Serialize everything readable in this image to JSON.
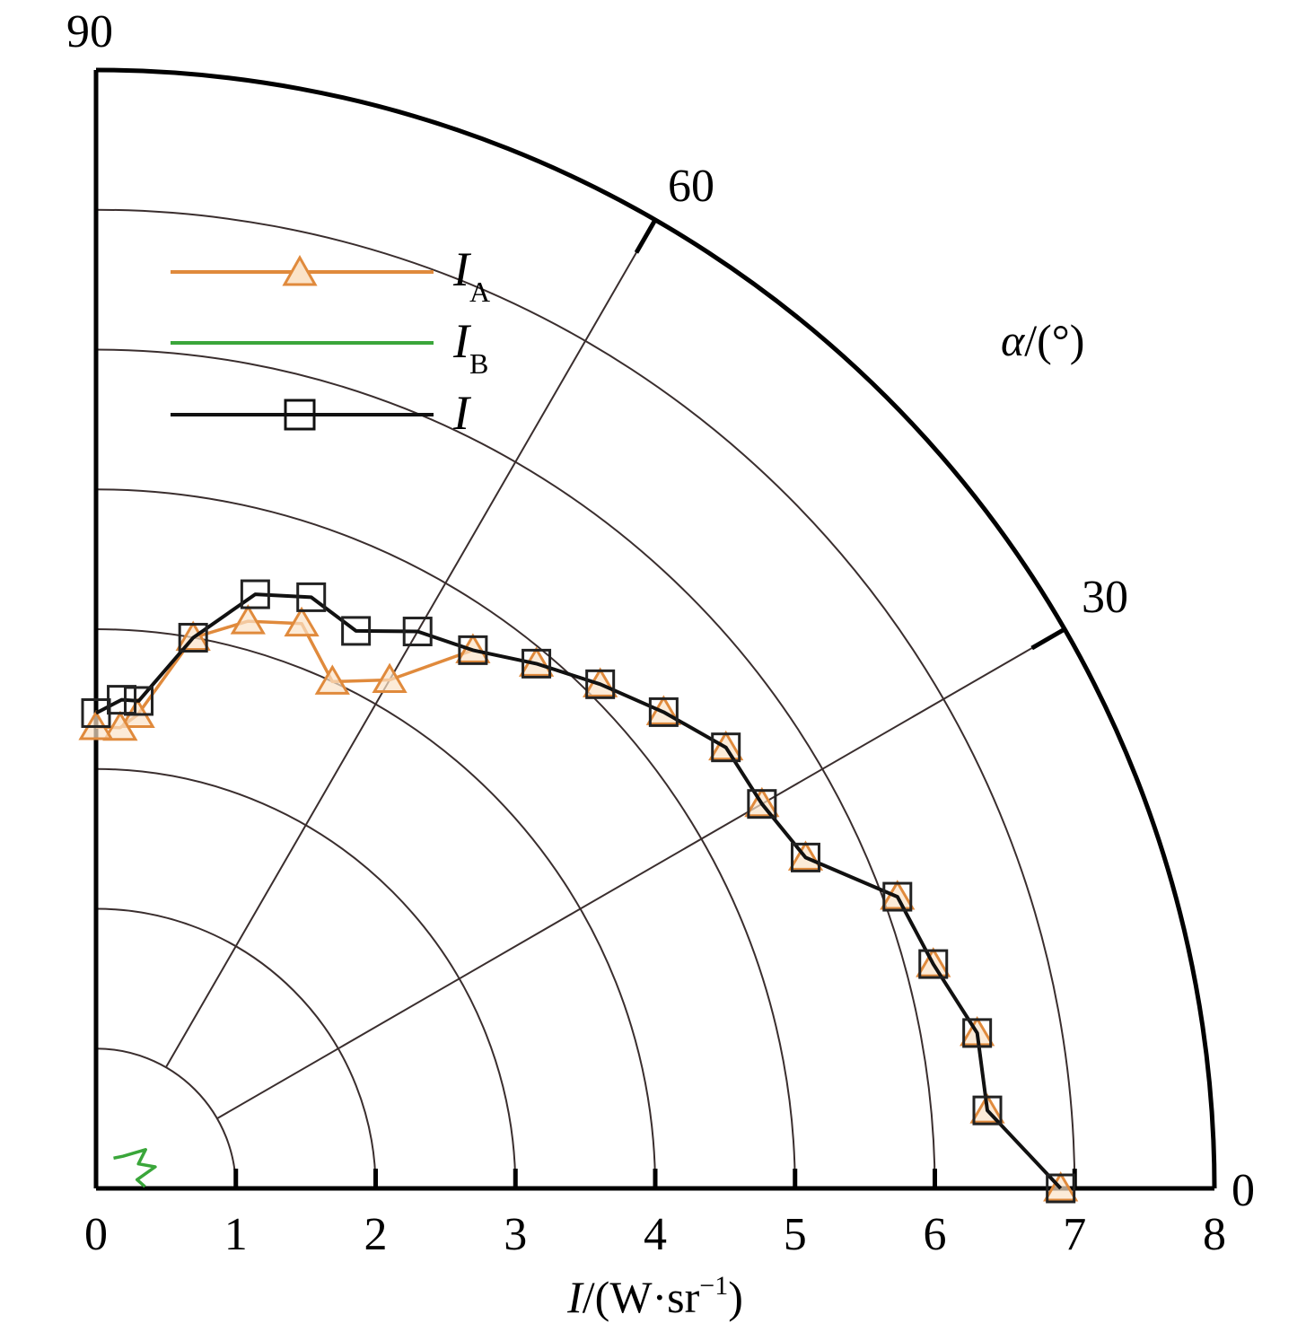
{
  "chart_data": {
    "type": "line",
    "coordinate_system": "polar-quadrant",
    "xlabel": "I/(W·sr⁻¹)",
    "xlabel_parts": {
      "var": "I",
      "rest": "/(W·sr",
      "sup": "−1",
      "close": ")"
    },
    "angle_label": "α/(°)",
    "angle_label_parts": {
      "var": "α",
      "rest": "/(°)"
    },
    "radial_range": [
      0,
      8
    ],
    "radial_ticks": [
      "0",
      "1",
      "2",
      "3",
      "4",
      "5",
      "6",
      "7",
      "8"
    ],
    "angle_range": [
      0,
      90
    ],
    "angle_ticks": [
      "0",
      "30",
      "60",
      "90"
    ],
    "grid": true,
    "legend_position": "top-left",
    "series": [
      {
        "name": "I_A",
        "label_main": "I",
        "label_sub": "A",
        "color": "#e08a3c",
        "marker": "triangle",
        "points": [
          {
            "angle": 0,
            "value": 6.9
          },
          {
            "angle": 5,
            "value": 6.4
          },
          {
            "angle": 10,
            "value": 6.4
          },
          {
            "angle": 15,
            "value": 6.2
          },
          {
            "angle": 20,
            "value": 6.1
          },
          {
            "angle": 25,
            "value": 5.6
          },
          {
            "angle": 30,
            "value": 5.5
          },
          {
            "angle": 35,
            "value": 5.5
          },
          {
            "angle": 40,
            "value": 5.3
          },
          {
            "angle": 45,
            "value": 5.1
          },
          {
            "angle": 50,
            "value": 4.9
          },
          {
            "angle": 55,
            "value": 4.7
          },
          {
            "angle": 60,
            "value": 4.2
          },
          {
            "angle": 65,
            "value": 4.0
          },
          {
            "angle": 70,
            "value": 4.3
          },
          {
            "angle": 75,
            "value": 4.2
          },
          {
            "angle": 80,
            "value": 4.0
          },
          {
            "angle": 85,
            "value": 3.4
          },
          {
            "angle": 87,
            "value": 3.3
          },
          {
            "angle": 90,
            "value": 3.3
          }
        ]
      },
      {
        "name": "I_B",
        "label_main": "I",
        "label_sub": "B",
        "color": "#3aa63a",
        "marker": "none",
        "points": [
          {
            "angle": 2,
            "value": 0.35
          },
          {
            "angle": 12,
            "value": 0.3
          },
          {
            "angle": 20,
            "value": 0.45
          },
          {
            "angle": 30,
            "value": 0.35
          },
          {
            "angle": 38,
            "value": 0.45
          },
          {
            "angle": 50,
            "value": 0.3
          },
          {
            "angle": 60,
            "value": 0.25
          }
        ]
      },
      {
        "name": "I",
        "label_main": "I",
        "label_sub": "",
        "color": "#111111",
        "marker": "square",
        "points": [
          {
            "angle": 0,
            "value": 6.9
          },
          {
            "angle": 5,
            "value": 6.4
          },
          {
            "angle": 10,
            "value": 6.4
          },
          {
            "angle": 15,
            "value": 6.2
          },
          {
            "angle": 20,
            "value": 6.1
          },
          {
            "angle": 25,
            "value": 5.6
          },
          {
            "angle": 30,
            "value": 5.5
          },
          {
            "angle": 35,
            "value": 5.5
          },
          {
            "angle": 40,
            "value": 5.3
          },
          {
            "angle": 45,
            "value": 5.1
          },
          {
            "angle": 50,
            "value": 4.9
          },
          {
            "angle": 55,
            "value": 4.7
          },
          {
            "angle": 60,
            "value": 4.6
          },
          {
            "angle": 65,
            "value": 4.4
          },
          {
            "angle": 70,
            "value": 4.5
          },
          {
            "angle": 75,
            "value": 4.4
          },
          {
            "angle": 80,
            "value": 4.0
          },
          {
            "angle": 85,
            "value": 3.5
          },
          {
            "angle": 87,
            "value": 3.5
          },
          {
            "angle": 90,
            "value": 3.4
          }
        ]
      }
    ]
  }
}
